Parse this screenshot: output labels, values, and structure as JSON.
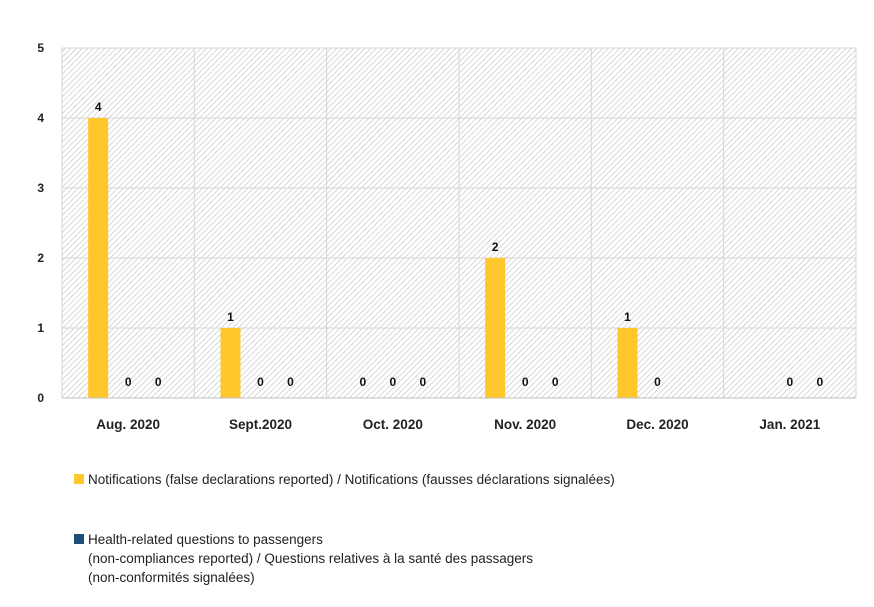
{
  "chart_data": {
    "type": "bar",
    "ylim": [
      0,
      5
    ],
    "yticks": [
      "0",
      "1",
      "2",
      "3",
      "4",
      "5"
    ],
    "grid": true,
    "legend_position": "bottom",
    "categories": [
      "Aug. 2020",
      "Sept.2020",
      "Oct. 2020",
      "Nov. 2020",
      "Dec. 2020",
      "Jan. 2021"
    ],
    "series": [
      {
        "name": "Notifications (false declarations reported) / Notifications (fausses déclarations signalées)",
        "color": "#FFC72C",
        "values": [
          4,
          1,
          0,
          2,
          1,
          null
        ],
        "labels": [
          "4",
          "1",
          "0",
          "2",
          "1",
          ""
        ]
      },
      {
        "name": "Health-related questions to passengers\n(non-compliances reported) / Questions relatives à la santé des passagers\n(non-conformités signalées)",
        "color": "#1F4E79",
        "values": [
          0,
          0,
          0,
          0,
          0,
          0
        ],
        "labels": [
          "0",
          "0",
          "0",
          "0",
          "0",
          "0"
        ]
      },
      {
        "name": "",
        "color": "#A5A5A5",
        "values": [
          0,
          0,
          0,
          0,
          null,
          0
        ],
        "labels": [
          "0",
          "0",
          "0",
          "0",
          "",
          "0"
        ]
      }
    ]
  }
}
